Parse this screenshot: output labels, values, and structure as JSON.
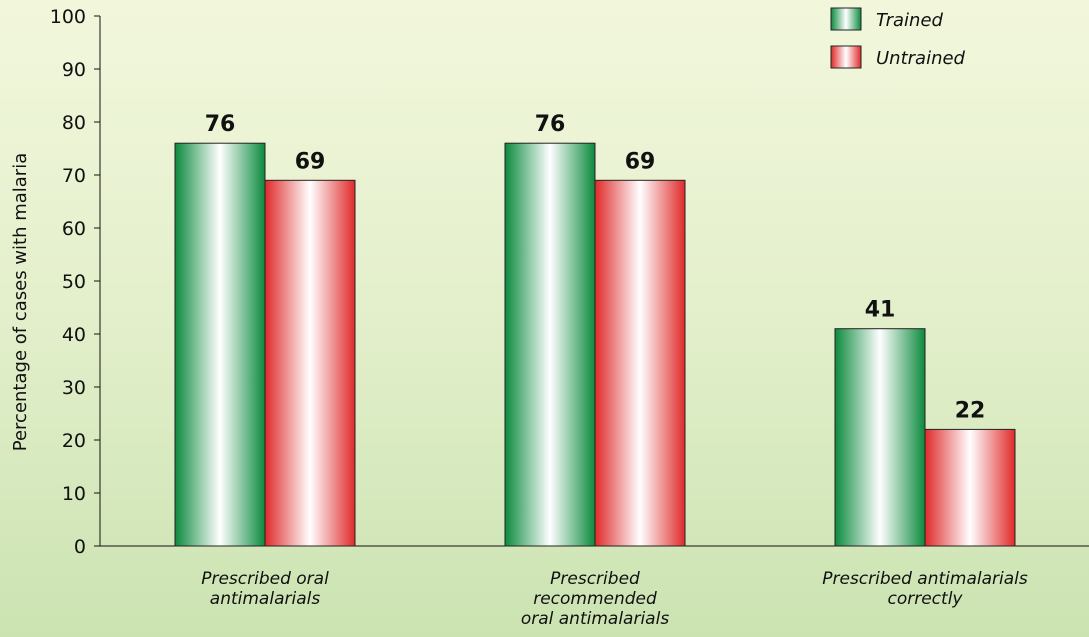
{
  "chart_data": {
    "type": "bar",
    "title": "",
    "xlabel": "",
    "ylabel": "Percentage of cases with malaria",
    "ylim": [
      0,
      100
    ],
    "yticks": [
      0,
      10,
      20,
      30,
      40,
      50,
      60,
      70,
      80,
      90,
      100
    ],
    "grid": false,
    "legend_position": "top-right",
    "categories": [
      [
        "Prescribed oral",
        "antimalarials"
      ],
      [
        "Prescribed",
        "recommended",
        "oral antimalarials"
      ],
      [
        "Prescribed antimalarials",
        "correctly"
      ]
    ],
    "series": [
      {
        "name": "Trained",
        "values": [
          76,
          76,
          41
        ],
        "color": "#1f9a4f"
      },
      {
        "name": "Untrained",
        "values": [
          69,
          69,
          22
        ],
        "color": "#e33a3a"
      }
    ]
  }
}
